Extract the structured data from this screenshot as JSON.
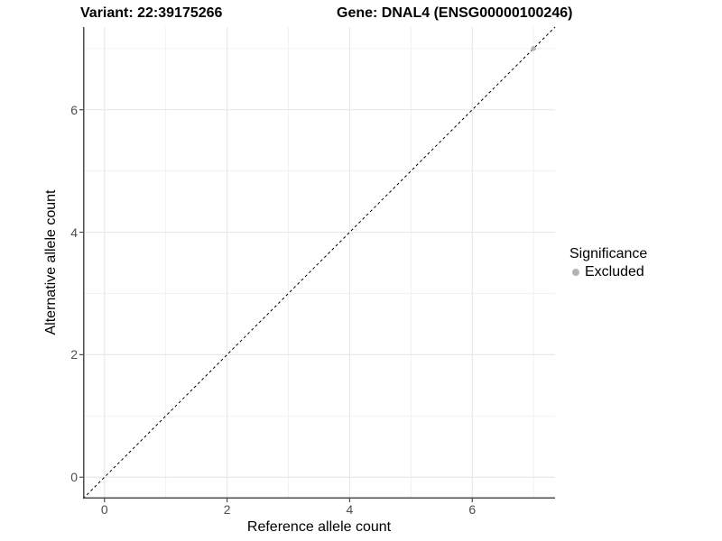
{
  "titles": {
    "variant": "Variant: 22:39175266",
    "gene": "Gene: DNAL4 (ENSG00000100246)"
  },
  "axes": {
    "x": {
      "label": "Reference allele count"
    },
    "y": {
      "label": "Alternative allele count"
    }
  },
  "legend": {
    "title": "Significance",
    "items": [
      {
        "label": "Excluded",
        "color": "#b3b3b3"
      }
    ]
  },
  "colors": {
    "background": "#ffffff",
    "grid_major": "#e8e8e8",
    "grid_minor": "#f0f0f0",
    "axis_line": "#4d4d4d",
    "tick_text": "#4d4d4d",
    "identity_line": "#000000",
    "point": "#b3b3b3"
  },
  "chart_data": {
    "type": "scatter",
    "title": "Variant: 22:39175266 | Gene: DNAL4 (ENSG00000100246)",
    "xlabel": "Reference allele count",
    "ylabel": "Alternative allele count",
    "xlim": [
      -0.35,
      7.35
    ],
    "ylim": [
      -0.35,
      7.35
    ],
    "x_ticks": [
      0,
      2,
      4,
      6
    ],
    "y_ticks": [
      0,
      2,
      4,
      6
    ],
    "grid_major": [
      0,
      2,
      4,
      6
    ],
    "grid_minor": [
      1,
      3,
      5,
      7
    ],
    "grid": "on",
    "legend_position": "right",
    "reference_line": {
      "kind": "identity",
      "equation": "y = x",
      "style": "dashed",
      "color": "#000000"
    },
    "series": [
      {
        "name": "Excluded",
        "color": "#b3b3b3",
        "points": [
          {
            "x": 7,
            "y": 7
          }
        ]
      }
    ]
  }
}
